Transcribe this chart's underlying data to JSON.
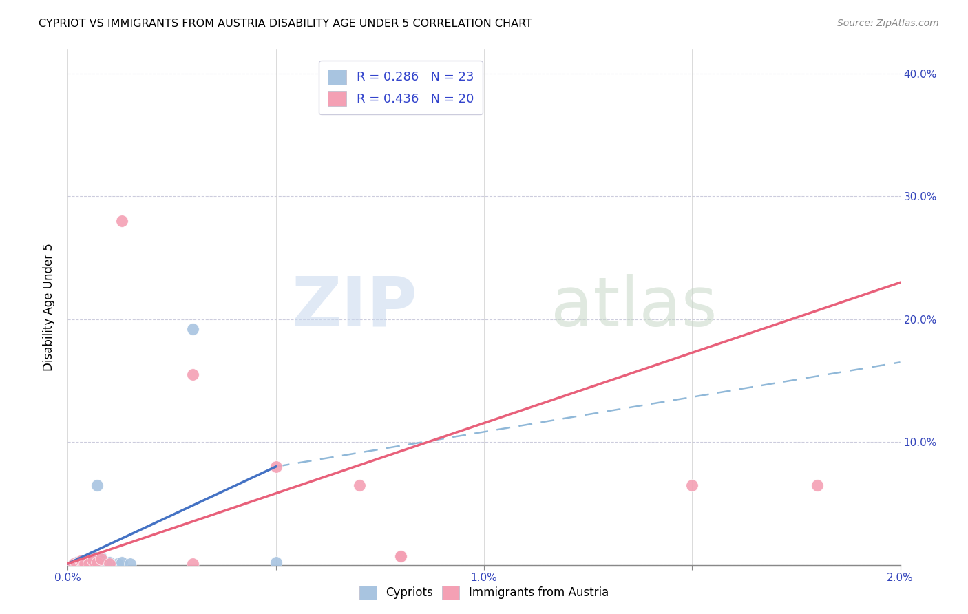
{
  "title": "CYPRIOT VS IMMIGRANTS FROM AUSTRIA DISABILITY AGE UNDER 5 CORRELATION CHART",
  "source": "Source: ZipAtlas.com",
  "ylabel": "Disability Age Under 5",
  "xlim": [
    0.0,
    0.02
  ],
  "ylim": [
    0.0,
    0.42
  ],
  "legend_r1": "R = 0.286",
  "legend_n1": "N = 23",
  "legend_r2": "R = 0.436",
  "legend_n2": "N = 20",
  "cypriot_color": "#a8c4e0",
  "austria_color": "#f4a0b4",
  "trendline_cypriot_color": "#4472c4",
  "trendline_austria_color": "#e8607a",
  "trendline_dashed_color": "#90b8d8",
  "cypriot_x": [
    0.00015,
    0.0002,
    0.00025,
    0.0003,
    0.0003,
    0.00035,
    0.0004,
    0.00045,
    0.0005,
    0.0005,
    0.0006,
    0.0006,
    0.00065,
    0.0007,
    0.0008,
    0.0008,
    0.0009,
    0.001,
    0.0012,
    0.0013,
    0.0015,
    0.003,
    0.005
  ],
  "cypriot_y": [
    0.001,
    0.002,
    0.001,
    0.001,
    0.003,
    0.001,
    0.002,
    0.001,
    0.005,
    0.001,
    0.007,
    0.003,
    0.001,
    0.065,
    0.006,
    0.003,
    0.001,
    0.002,
    0.001,
    0.002,
    0.001,
    0.192,
    0.002
  ],
  "austria_x": [
    0.00015,
    0.0002,
    0.0003,
    0.00035,
    0.0004,
    0.0005,
    0.0005,
    0.0006,
    0.0007,
    0.0008,
    0.001,
    0.0013,
    0.003,
    0.003,
    0.005,
    0.007,
    0.008,
    0.008,
    0.015,
    0.018
  ],
  "austria_y": [
    0.001,
    0.001,
    0.003,
    0.002,
    0.001,
    0.003,
    0.001,
    0.004,
    0.002,
    0.005,
    0.001,
    0.28,
    0.155,
    0.001,
    0.08,
    0.065,
    0.007,
    0.007,
    0.065,
    0.065
  ],
  "cyp_trendline_x0": 0.0,
  "cyp_trendline_x1": 0.005,
  "cyp_trendline_y0": 0.001,
  "cyp_trendline_y1": 0.08,
  "aut_trendline_x0": 0.0,
  "aut_trendline_x1": 0.02,
  "aut_trendline_y0": 0.001,
  "aut_trendline_y1": 0.23,
  "dash_trendline_x0": 0.005,
  "dash_trendline_x1": 0.02,
  "dash_trendline_y0": 0.08,
  "dash_trendline_y1": 0.165
}
